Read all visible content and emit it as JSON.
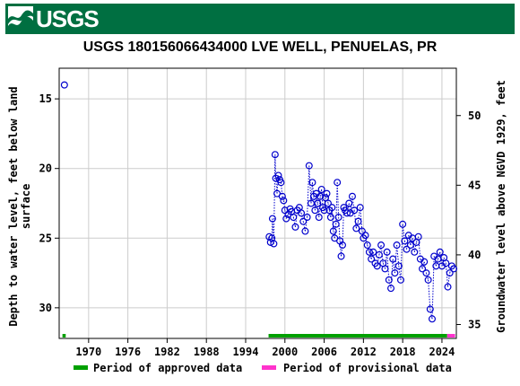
{
  "header": {
    "agency_logo_text": "USGS"
  },
  "colors": {
    "banner": "#006f41",
    "data_points": "#0000cc",
    "approved": "#00a000",
    "provisional": "#ff33cc",
    "grid": "#cccccc"
  },
  "chart_data": {
    "type": "scatter",
    "title": "USGS 180156066434000 LVE WELL, PENUELAS, PR",
    "ylabel_left_line1": "Depth to water level, feet below land",
    "ylabel_left_line2": "surface",
    "ylabel_right": "Groundwater level above NGVD 1929, feet",
    "xlim": [
      1965.5,
      2026.2
    ],
    "ylim_left": [
      32.2,
      12.8
    ],
    "ylim_right": [
      34.0,
      53.4
    ],
    "x_ticks": [
      1970,
      1976,
      1982,
      1988,
      1994,
      2000,
      2006,
      2012,
      2018,
      2024
    ],
    "y_ticks_left": [
      15,
      20,
      25,
      30
    ],
    "y_ticks_right": [
      35,
      40,
      45,
      50
    ],
    "grid": true,
    "legend_position": "bottom",
    "legend": [
      {
        "label": "Period of approved data",
        "color": "#00a000"
      },
      {
        "label": "Period of provisional data",
        "color": "#ff33cc"
      }
    ],
    "periods": [
      {
        "status": "approved",
        "start": 1966.0,
        "end": 1966.5
      },
      {
        "status": "approved",
        "start": 1997.5,
        "end": 2024.8
      },
      {
        "status": "provisional",
        "start": 2024.8,
        "end": 2026.0
      }
    ],
    "series": [
      {
        "x": [
          1966.3,
          1997.6,
          1997.8,
          1998.0,
          1998.1,
          1998.3,
          1998.5,
          1998.6,
          1998.8,
          1999.0,
          1999.2,
          1999.4,
          1999.6,
          1999.8,
          2000.0,
          2000.2,
          2000.5,
          2000.8,
          2001.0,
          2001.3,
          2001.6,
          2001.9,
          2002.2,
          2002.5,
          2002.8,
          2003.1,
          2003.4,
          2003.7,
          2004.0,
          2004.2,
          2004.4,
          2004.6,
          2004.8,
          2005.0,
          2005.2,
          2005.4,
          2005.6,
          2005.8,
          2006.0,
          2006.2,
          2006.4,
          2006.6,
          2006.8,
          2007.0,
          2007.2,
          2007.4,
          2007.6,
          2007.8,
          2008.0,
          2008.2,
          2008.4,
          2008.6,
          2008.8,
          2009.0,
          2009.2,
          2009.5,
          2009.8,
          2010.0,
          2010.3,
          2010.6,
          2010.9,
          2011.2,
          2011.5,
          2011.8,
          2012.0,
          2012.3,
          2012.6,
          2012.9,
          2013.2,
          2013.5,
          2013.8,
          2014.1,
          2014.4,
          2014.7,
          2015.0,
          2015.3,
          2015.6,
          2015.9,
          2016.2,
          2016.5,
          2016.8,
          2017.1,
          2017.4,
          2017.7,
          2018.0,
          2018.3,
          2018.6,
          2018.9,
          2019.2,
          2019.5,
          2019.8,
          2020.1,
          2020.4,
          2020.7,
          2021.0,
          2021.3,
          2021.6,
          2021.9,
          2022.2,
          2022.5,
          2022.8,
          2023.1,
          2023.4,
          2023.7,
          2024.0,
          2024.3,
          2024.6,
          2024.9,
          2025.2,
          2025.5,
          2025.8
        ],
        "y": [
          14.0,
          24.9,
          25.3,
          25.0,
          23.6,
          25.4,
          19.0,
          20.7,
          21.8,
          20.5,
          20.8,
          21.0,
          22.0,
          22.3,
          23.0,
          23.6,
          23.3,
          22.9,
          23.1,
          23.5,
          24.2,
          23.0,
          22.8,
          23.2,
          23.8,
          24.5,
          23.5,
          19.8,
          22.5,
          21.0,
          22.0,
          23.0,
          21.8,
          22.5,
          23.5,
          22.0,
          21.5,
          22.8,
          23.0,
          22.1,
          21.8,
          22.5,
          23.0,
          23.5,
          22.8,
          24.5,
          25.0,
          24.0,
          21.0,
          23.5,
          25.2,
          26.3,
          25.5,
          22.8,
          23.0,
          23.2,
          22.5,
          23.2,
          22.0,
          23.0,
          24.3,
          23.8,
          22.8,
          24.5,
          25.0,
          24.8,
          25.5,
          26.0,
          26.5,
          26.0,
          26.8,
          27.0,
          26.2,
          25.5,
          26.8,
          27.2,
          26.0,
          28.0,
          28.6,
          26.5,
          27.5,
          25.5,
          27.0,
          28.0,
          24.0,
          25.2,
          25.8,
          24.8,
          25.5,
          25.0,
          26.0,
          25.3,
          24.9,
          26.5,
          27.2,
          26.7,
          27.5,
          28.0,
          30.1,
          30.8,
          26.3,
          27.0,
          26.5,
          26.0,
          27.0,
          26.4,
          26.8,
          28.5,
          27.5,
          27.0,
          27.2
        ]
      }
    ]
  }
}
